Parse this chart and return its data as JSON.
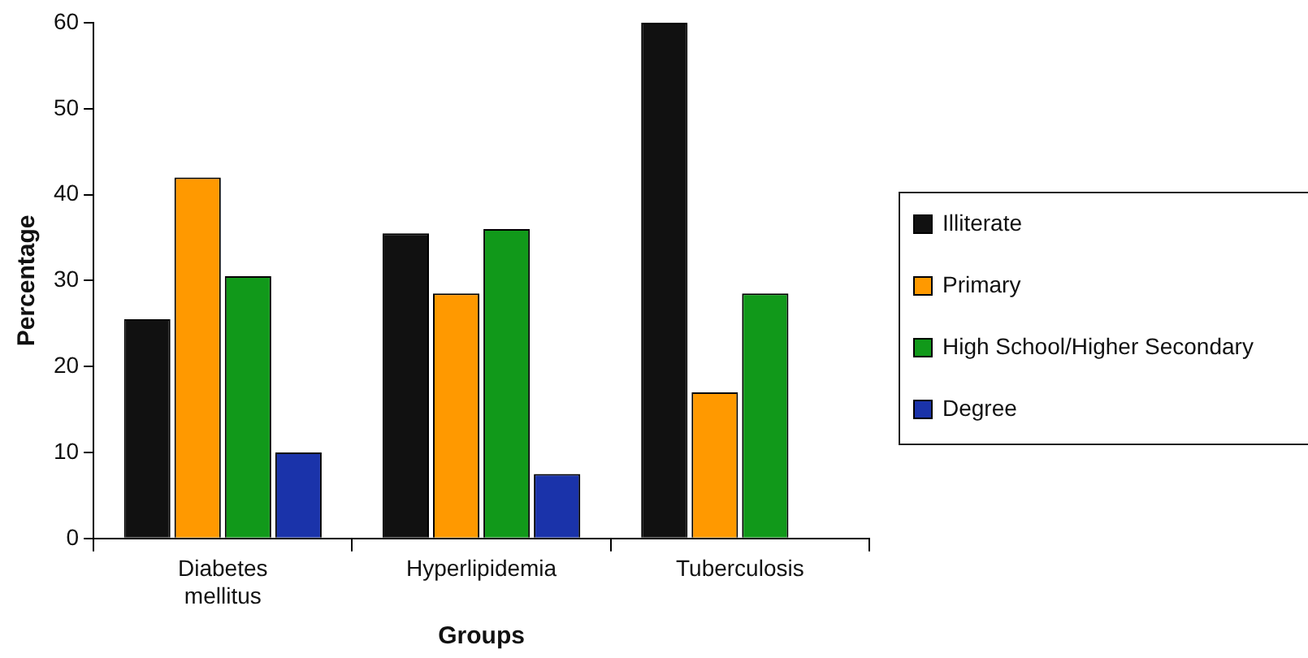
{
  "chart_data": {
    "type": "bar",
    "xlabel": "Groups",
    "ylabel": "Percentage",
    "categories": [
      "Diabetes mellitus",
      "Hyperlipidemia",
      "Tuberculosis"
    ],
    "series": [
      {
        "name": "Illiterate",
        "color": "#111111",
        "values": [
          25.5,
          35.5,
          60
        ]
      },
      {
        "name": "Primary",
        "color": "#ff9900",
        "values": [
          42,
          28.5,
          17
        ]
      },
      {
        "name": "High School/Higher Secondary",
        "color": "#11991a",
        "values": [
          30.5,
          36,
          28.5
        ]
      },
      {
        "name": "Degree",
        "color": "#1a33aa",
        "values": [
          10,
          7.5,
          null
        ]
      }
    ],
    "ylim": [
      0,
      60
    ],
    "yticks": [
      0,
      10,
      20,
      30,
      40,
      50,
      60
    ],
    "grid": false,
    "legend": "right"
  }
}
